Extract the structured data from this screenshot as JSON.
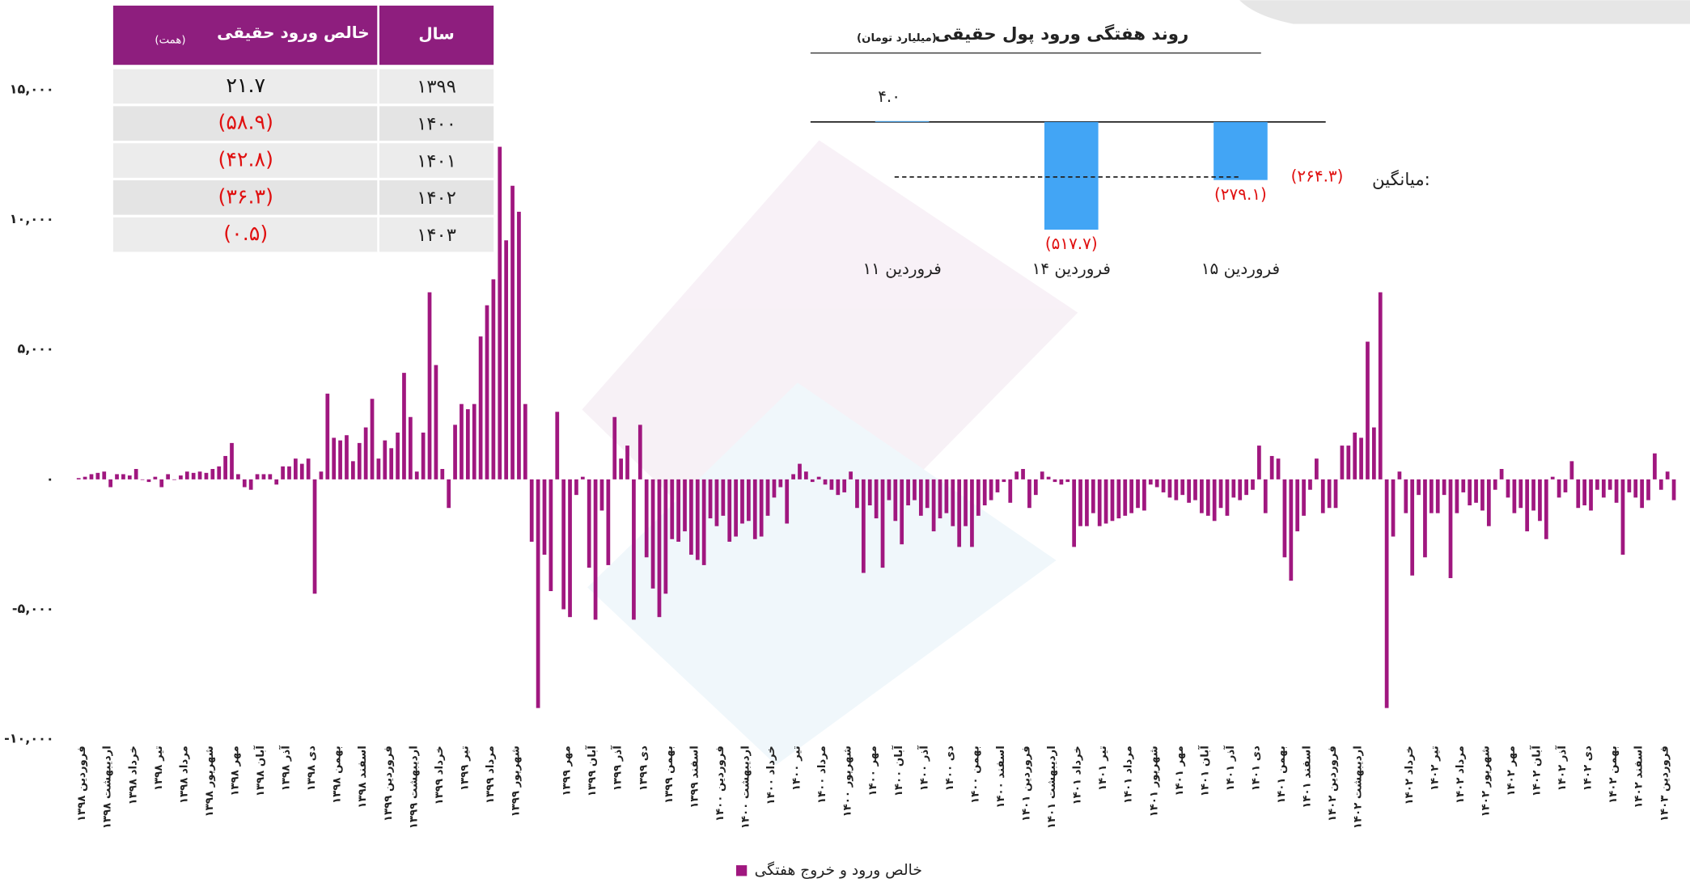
{
  "table": {
    "header": {
      "year": "سال",
      "value": "خالص ورود حقیقی",
      "unit": "(همت)"
    },
    "rows": [
      [
        "۱۳۹۹",
        "۲۱.۷"
      ],
      [
        "۱۴۰۰",
        "(۵۸.۹)"
      ],
      [
        "۱۴۰۱",
        "(۴۲.۸)"
      ],
      [
        "۱۴۰۲",
        "(۳۶.۳)"
      ],
      [
        "۱۴۰۳",
        "(۰.۵)"
      ]
    ]
  },
  "chart_data": [
    {
      "type": "bar",
      "legend": "bottom",
      "ylim": [
        -10000,
        15000
      ],
      "yticks": [
        {
          "value": -10000,
          "label": "-۱۰,۰۰۰"
        },
        {
          "value": -5000,
          "label": "-۵,۰۰۰"
        },
        {
          "value": 0,
          "label": "۰"
        },
        {
          "value": 5000,
          "label": "۵,۰۰۰"
        },
        {
          "value": 10000,
          "label": "۱۰,۰۰۰"
        },
        {
          "value": 15000,
          "label": "۱۵,۰۰۰"
        }
      ],
      "categories": [
        "فروردین ۱۳۹۸",
        null,
        null,
        null,
        "اردیبهشت ۱۳۹۸",
        null,
        null,
        null,
        "خرداد ۱۳۹۸",
        null,
        null,
        null,
        "تیر ۱۳۹۸",
        null,
        null,
        null,
        "مرداد ۱۳۹۸",
        null,
        null,
        null,
        "شهریور ۱۳۹۸",
        null,
        null,
        null,
        "مهر ۱۳۹۸",
        null,
        null,
        null,
        "آبان ۱۳۹۸",
        null,
        null,
        null,
        "آذر ۱۳۹۸",
        null,
        null,
        null,
        "دی ۱۳۹۸",
        null,
        null,
        null,
        "بهمن ۱۳۹۸",
        null,
        null,
        null,
        "اسفند ۱۳۹۸",
        null,
        null,
        null,
        "فروردین ۱۳۹۹",
        null,
        null,
        null,
        "اردیبهشت ۱۳۹۹",
        null,
        null,
        null,
        "خرداد ۱۳۹۹",
        null,
        null,
        null,
        "تیر ۱۳۹۹",
        null,
        null,
        null,
        "مرداد ۱۳۹۹",
        null,
        null,
        null,
        "شهریور ۱۳۹۹",
        null,
        null,
        null,
        null,
        null,
        null,
        null,
        "مهر ۱۳۹۹",
        null,
        null,
        null,
        "آبان ۱۳۹۹",
        null,
        null,
        null,
        "آذر ۱۳۹۹",
        null,
        null,
        null,
        "دی ۱۳۹۹",
        null,
        null,
        null,
        "بهمن ۱۳۹۹",
        null,
        null,
        null,
        "اسفند ۱۳۹۹",
        null,
        null,
        null,
        "فروردین ۱۴۰۰",
        null,
        null,
        null,
        "اردیبهشت ۱۴۰۰",
        null,
        null,
        null,
        "خرداد ۱۴۰۰",
        null,
        null,
        null,
        "تیر ۱۴۰۰",
        null,
        null,
        null,
        "مرداد ۱۴۰۰",
        null,
        null,
        null,
        "شهریور ۱۴۰۰",
        null,
        null,
        null,
        "مهر ۱۴۰۰",
        null,
        null,
        null,
        "آبان ۱۴۰۰",
        null,
        null,
        null,
        "آذر ۱۴۰۰",
        null,
        null,
        null,
        "دی ۱۴۰۰",
        null,
        null,
        null,
        "بهمن ۱۴۰۰",
        null,
        null,
        null,
        "اسفند ۱۴۰۰",
        null,
        null,
        null,
        "فروردین ۱۴۰۱",
        null,
        null,
        null,
        "اردیبهشت ۱۴۰۱",
        null,
        null,
        null,
        "خرداد ۱۴۰۱",
        null,
        null,
        null,
        "تیر ۱۴۰۱",
        null,
        null,
        null,
        "مرداد ۱۴۰۱",
        null,
        null,
        null,
        "شهریور ۱۴۰۱",
        null,
        null,
        null,
        "مهر ۱۴۰۱",
        null,
        null,
        null,
        "آبان ۱۴۰۱",
        null,
        null,
        null,
        "آذر ۱۴۰۱",
        null,
        null,
        null,
        "دی ۱۴۰۱",
        null,
        null,
        null,
        "بهمن ۱۴۰۱",
        null,
        null,
        null,
        "اسفند ۱۴۰۱",
        null,
        null,
        null,
        "فروردین ۱۴۰۲",
        null,
        null,
        null,
        "اردیبهشت ۱۴۰۲",
        null,
        null,
        null,
        null,
        null,
        null,
        null,
        "خرداد ۱۴۰۲",
        null,
        null,
        null,
        "تیر ۱۴۰۲",
        null,
        null,
        null,
        "مرداد ۱۴۰۲",
        null,
        null,
        null,
        "شهریور ۱۴۰۲",
        null,
        null,
        null,
        "مهر ۱۴۰۲",
        null,
        null,
        null,
        "آبان ۱۴۰۲",
        null,
        null,
        null,
        "آذر ۱۴۰۲",
        null,
        null,
        null,
        "دی ۱۴۰۲",
        null,
        null,
        null,
        "بهمن ۱۴۰۲",
        null,
        null,
        null,
        "اسفند ۱۴۰۲",
        null,
        null,
        null,
        "فروردین ۱۴۰۳",
        null,
        null
      ],
      "series": [
        {
          "name": "خالص ورود و خروج هفتگی",
          "color": "#a0177f",
          "values": [
            50,
            100,
            200,
            250,
            300,
            -300,
            200,
            200,
            150,
            400,
            0,
            -100,
            100,
            -300,
            200,
            0,
            150,
            300,
            250,
            300,
            250,
            400,
            500,
            900,
            1400,
            200,
            -300,
            -400,
            200,
            200,
            200,
            -200,
            500,
            500,
            800,
            600,
            800,
            -4400,
            300,
            3300,
            1600,
            1500,
            1700,
            700,
            1400,
            2000,
            3100,
            800,
            1500,
            1200,
            1800,
            4100,
            2400,
            300,
            1800,
            7200,
            4400,
            400,
            -1100,
            2100,
            2900,
            2700,
            2900,
            5500,
            6700,
            7700,
            12800,
            9200,
            11300,
            10300,
            2900,
            -2400,
            -8800,
            -2900,
            -4300,
            2600,
            -5000,
            -5300,
            -600,
            100,
            -3400,
            -5400,
            -1200,
            -3300,
            2400,
            800,
            1300,
            -5400,
            2100,
            -3000,
            -4200,
            -5300,
            -4400,
            -2300,
            -2400,
            -2000,
            -2900,
            -3100,
            -3300,
            -1500,
            -1800,
            -1400,
            -2400,
            -2200,
            -1700,
            -1600,
            -2300,
            -2200,
            -1400,
            -700,
            -300,
            -1700,
            200,
            600,
            300,
            -100,
            100,
            -200,
            -400,
            -600,
            -500,
            300,
            -1100,
            -3600,
            -1000,
            -1500,
            -3400,
            -800,
            -1600,
            -2500,
            -1000,
            -800,
            -1400,
            -1100,
            -2000,
            -1500,
            -1300,
            -1800,
            -2600,
            -1800,
            -2600,
            -1400,
            -1000,
            -800,
            -500,
            -100,
            -900,
            300,
            400,
            -1100,
            -600,
            300,
            100,
            -100,
            -200,
            -100,
            -2600,
            -1800,
            -1800,
            -1300,
            -1800,
            -1700,
            -1600,
            -1500,
            -1400,
            -1300,
            -1100,
            -1200,
            -200,
            -300,
            -500,
            -700,
            -800,
            -600,
            -900,
            -800,
            -1300,
            -1400,
            -1600,
            -1100,
            -1400,
            -700,
            -800,
            -600,
            -400,
            1300,
            -1300,
            900,
            800,
            -3000,
            -3900,
            -2000,
            -1400,
            -400,
            800,
            -1300,
            -1100,
            -1100,
            1300,
            1300,
            1800,
            1600,
            5300,
            2000,
            7200,
            -8800,
            -2200,
            300,
            -1300,
            -3700,
            -600,
            -3000,
            -1300,
            -1300,
            -600,
            -3800,
            -1300,
            -500,
            -1000,
            -900,
            -1200,
            -1800,
            -400,
            400,
            -700,
            -1300,
            -1100,
            -2000,
            -1200,
            -1600,
            -2300,
            100,
            -700,
            -500,
            700,
            -1100,
            -1000,
            -1200,
            -400,
            -700,
            -400,
            -900,
            -2900,
            -500,
            -700,
            -1100,
            -800,
            1000,
            -400,
            300,
            -800
          ]
        }
      ]
    },
    {
      "type": "bar",
      "title": "روند هفتگی ورود پول حقیقی",
      "subtitle": "(میلیارد تومان)",
      "color": "#42a5f5",
      "categories": [
        "۱۱ فروردین",
        "۱۴ فروردین",
        "۱۵ فروردین"
      ],
      "values": [
        4.0,
        -517.7,
        -279.1
      ],
      "value_labels": [
        "۴.۰",
        "(۵۱۷.۷)",
        "(۲۷۹.۱)"
      ],
      "average": {
        "label": "میانگین:",
        "value": -264.3,
        "value_label": "(۲۶۴.۳)"
      }
    }
  ]
}
